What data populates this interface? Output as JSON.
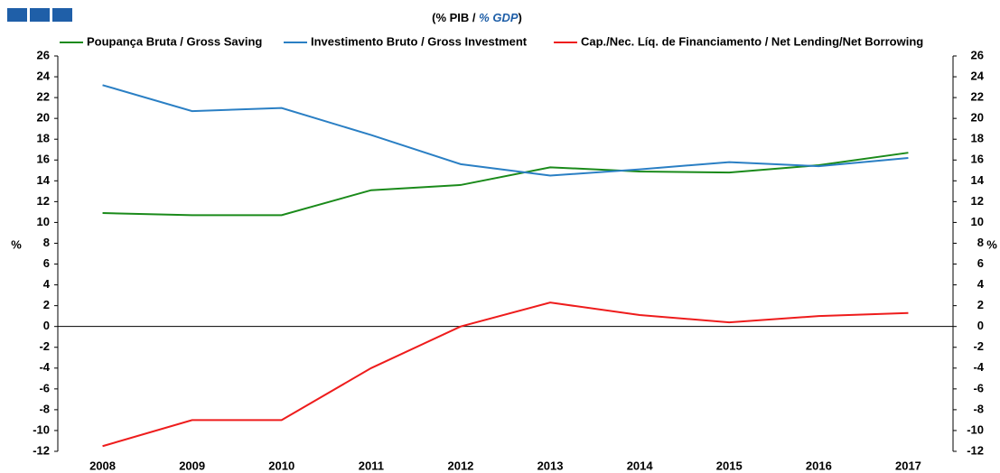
{
  "chart_data": {
    "type": "line",
    "title_parts": [
      "(% PIB / ",
      "% GDP",
      ")"
    ],
    "ylabel": "%",
    "y2label": "%",
    "categories": [
      "2008",
      "2009",
      "2010",
      "2011",
      "2012",
      "2013",
      "2014",
      "2015",
      "2016",
      "2017"
    ],
    "series": [
      {
        "name": "Poupança Bruta / Gross Saving",
        "color": "#1a8a1a",
        "values": [
          10.9,
          10.7,
          10.7,
          13.1,
          13.6,
          15.3,
          14.9,
          14.8,
          15.5,
          16.7
        ]
      },
      {
        "name": "Investimento Bruto / Gross Investment",
        "color": "#2a7fc4",
        "values": [
          23.2,
          20.7,
          21.0,
          18.4,
          15.6,
          14.5,
          15.1,
          15.8,
          15.4,
          16.2
        ]
      },
      {
        "name": "Cap./Nec. Líq. de Financiamento / Net Lending/Net Borrowing",
        "color": "#ee1c1c",
        "values": [
          -11.5,
          -9.0,
          -9.0,
          -4.0,
          0.0,
          2.3,
          1.1,
          0.4,
          1.0,
          1.3
        ]
      }
    ],
    "ylim": [
      -12,
      26
    ],
    "yticks": [
      -12,
      -10,
      -8,
      -6,
      -4,
      -2,
      0,
      2,
      4,
      6,
      8,
      10,
      12,
      14,
      16,
      18,
      20,
      22,
      24,
      26
    ],
    "y2lim": [
      -12,
      26
    ],
    "y2ticks": [
      -12,
      -10,
      -8,
      -6,
      -4,
      -2,
      0,
      2,
      4,
      6,
      8,
      10,
      12,
      14,
      16,
      18,
      20,
      22,
      24,
      26
    ],
    "grid": false,
    "legend": "top"
  }
}
